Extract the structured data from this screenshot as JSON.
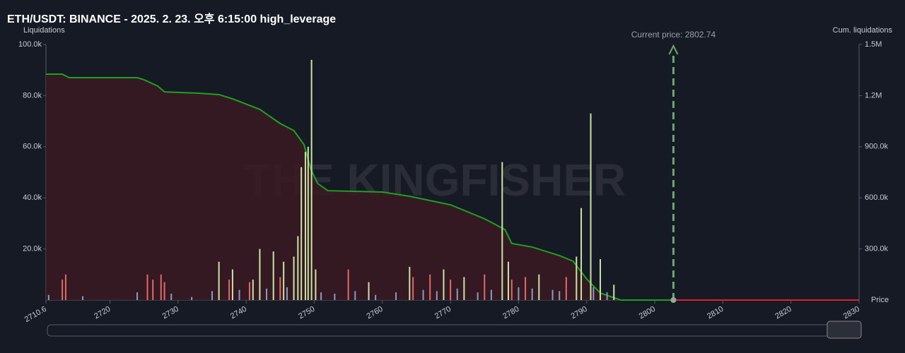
{
  "chart_data": {
    "type": "bar",
    "title": "ETH/USDT: BINANCE - 2025. 2. 23. 오후 6:15:00 high_leverage",
    "y_label": "Liquidations",
    "y2_label": "Cum. liquidations",
    "x_label": "Price",
    "watermark": "THE KINGFISHER",
    "current_price": {
      "value": 2802.74,
      "label": "Current price: 2802.74"
    },
    "xlim": [
      2710.6,
      2830
    ],
    "xticks": [
      2710.6,
      2720,
      2730,
      2740,
      2750,
      2760,
      2770,
      2780,
      2790,
      2800,
      2810,
      2820,
      2830
    ],
    "ylim": [
      0,
      100000
    ],
    "yticks": [
      {
        "value": 20000,
        "label": "20.0k"
      },
      {
        "value": 40000,
        "label": "40.0k"
      },
      {
        "value": 60000,
        "label": "60.0k"
      },
      {
        "value": 80000,
        "label": "80.0k"
      },
      {
        "value": 100000,
        "label": "100.0k"
      }
    ],
    "y2lim": [
      0,
      1500000
    ],
    "y2ticks": [
      {
        "value": 300000,
        "label": "300.0k"
      },
      {
        "value": 600000,
        "label": "600.0k"
      },
      {
        "value": 900000,
        "label": "900.0k"
      },
      {
        "value": 1200000,
        "label": "1.2M"
      },
      {
        "value": 1500000,
        "label": "1.5M"
      }
    ],
    "series": [
      {
        "type": "bar",
        "color": "#c9e4a4",
        "x": [
          2736,
          2738,
          2741,
          2742,
          2744,
          2745.5,
          2747,
          2747.6,
          2748.1,
          2748.7,
          2749.1,
          2749.6,
          2750.2,
          2758,
          2764,
          2769,
          2772,
          2777.6,
          2778.5,
          2783,
          2788.5,
          2789.2,
          2790.6,
          2792,
          2794
        ],
        "values": [
          15000,
          12000,
          8000,
          20000,
          19000,
          15000,
          17000,
          25000,
          52000,
          58000,
          60000,
          94000,
          12000,
          7000,
          13000,
          12000,
          9000,
          54000,
          15000,
          10000,
          17000,
          36000,
          73000,
          16000,
          6000
        ]
      },
      {
        "type": "bar",
        "color": "#e06a6a",
        "x": [
          2713,
          2713.5,
          2725.5,
          2726.3,
          2727.5,
          2728,
          2737.5,
          2740.5,
          2745,
          2755,
          2764.5,
          2767,
          2770,
          2775,
          2779,
          2781,
          2787
        ],
        "values": [
          8000,
          10000,
          10000,
          8000,
          10000,
          7000,
          8000,
          7000,
          9000,
          12000,
          9000,
          10000,
          8000,
          10000,
          8000,
          9000,
          9000
        ]
      },
      {
        "type": "bar",
        "color": "#8b9bbf",
        "x": [
          2711,
          2716,
          2724,
          2729,
          2732,
          2735,
          2739,
          2743,
          2746,
          2751,
          2753,
          2756,
          2759,
          2762,
          2766,
          2768,
          2771,
          2774,
          2776,
          2780,
          2782,
          2785,
          2786,
          2791,
          2793
        ],
        "values": [
          2000,
          1500,
          3000,
          2500,
          1200,
          3500,
          4000,
          4500,
          5000,
          3000,
          2500,
          3500,
          2000,
          3000,
          4000,
          3500,
          4500,
          3000,
          4000,
          5000,
          4500,
          4000,
          3500,
          5000,
          3000
        ]
      },
      {
        "type": "line",
        "axis": "y2",
        "color": "#1fa11f",
        "area": "#3a1a22",
        "x": [
          2710.6,
          2713,
          2714,
          2724,
          2725,
          2727,
          2728,
          2733,
          2736,
          2738,
          2742,
          2745,
          2747,
          2748.5,
          2749.5,
          2750.5,
          2752,
          2760,
          2764,
          2770,
          2775,
          2778,
          2779,
          2782,
          2786,
          2788,
          2790,
          2792,
          2795,
          2802.74
        ],
        "values": [
          1326000,
          1326000,
          1305000,
          1305000,
          1293000,
          1256000,
          1222000,
          1214000,
          1206000,
          1181000,
          1119000,
          1036000,
          995000,
          912000,
          767000,
          684000,
          642000,
          634000,
          609000,
          559000,
          477000,
          414000,
          332000,
          311000,
          261000,
          228000,
          124000,
          41000,
          0,
          0
        ]
      },
      {
        "type": "line",
        "axis": "y2",
        "color": "#e0202a",
        "x": [
          2802.74,
          2830
        ],
        "values": [
          0,
          0
        ]
      }
    ]
  }
}
